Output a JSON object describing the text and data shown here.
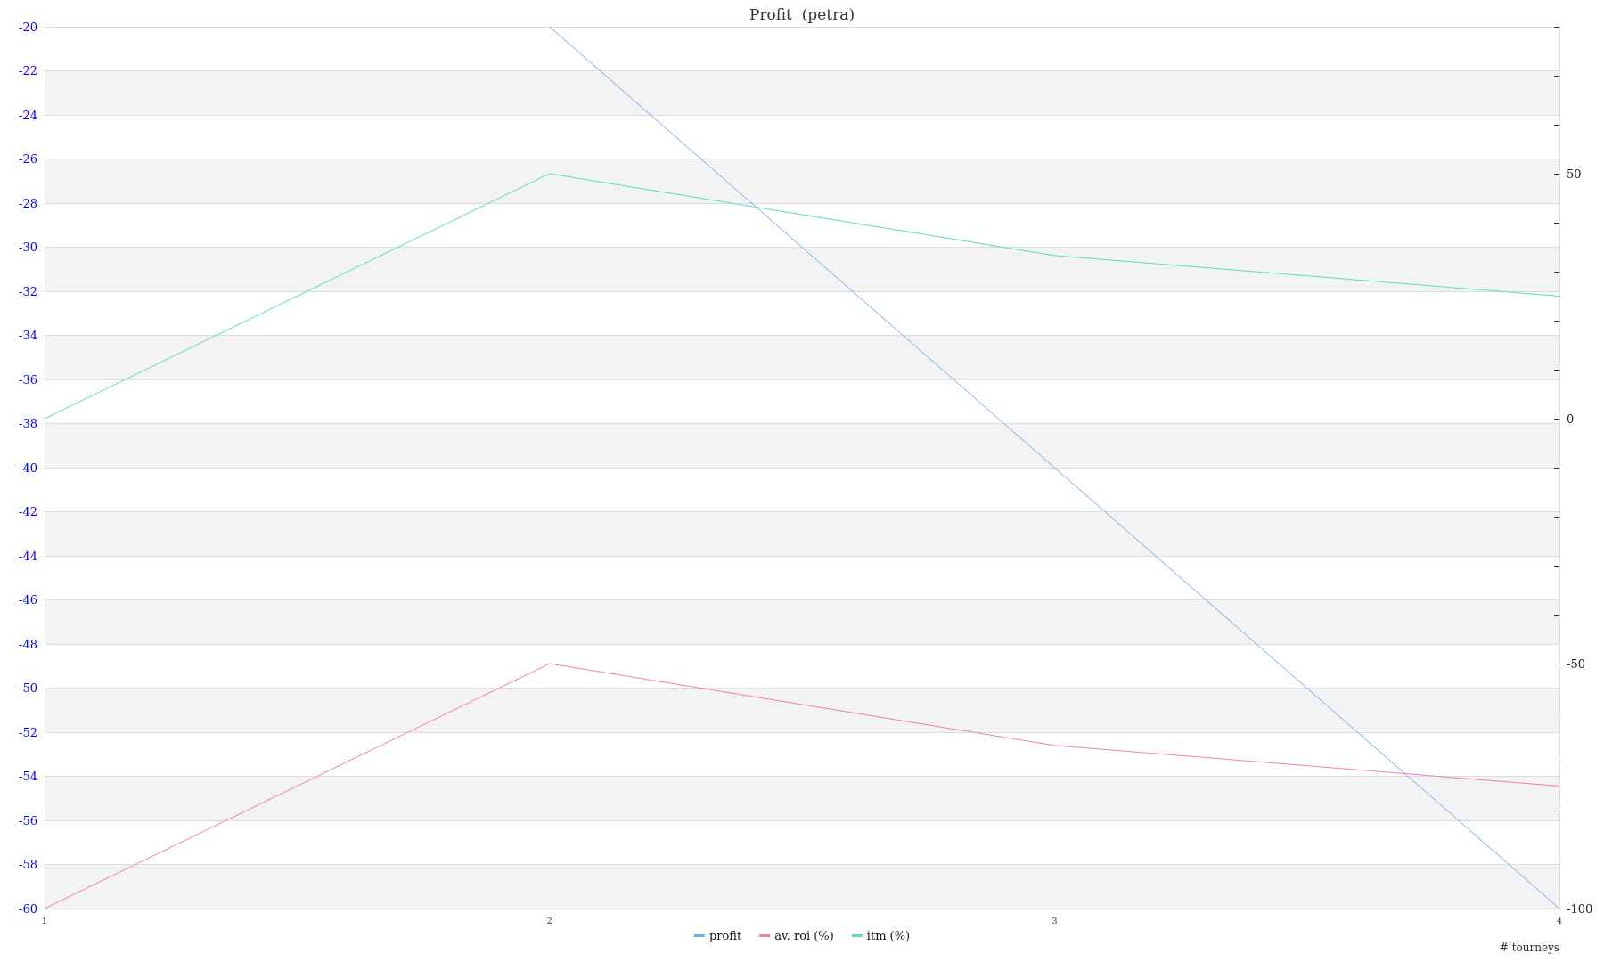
{
  "chart_data": {
    "type": "line",
    "title": "Profit  (petra)",
    "xlabel": "# tourneys",
    "x": [
      1,
      2,
      3,
      4
    ],
    "xlim": [
      1,
      4
    ],
    "xticks": [
      1,
      2,
      3,
      4
    ],
    "ylim": [
      -60,
      -20
    ],
    "yticks": [
      -60,
      -58,
      -56,
      -54,
      -52,
      -50,
      -48,
      -46,
      -44,
      -42,
      -40,
      -38,
      -36,
      -34,
      -32,
      -30,
      -28,
      -26,
      -24,
      -22,
      -20
    ],
    "y2lim": [
      -100,
      80
    ],
    "y2ticks": [
      -100,
      {
        "value": -90,
        "label": null
      },
      {
        "value": -80,
        "label": null
      },
      {
        "value": -70,
        "label": null
      },
      {
        "value": -60,
        "label": null
      },
      -50,
      {
        "value": -40,
        "label": null
      },
      {
        "value": -30,
        "label": null
      },
      {
        "value": -20,
        "label": null
      },
      {
        "value": -10,
        "label": null
      },
      0,
      {
        "value": 10,
        "label": null
      },
      {
        "value": 20,
        "label": null
      },
      {
        "value": 30,
        "label": null
      },
      {
        "value": 40,
        "label": null
      },
      50,
      {
        "value": 60,
        "label": null
      },
      {
        "value": 70,
        "label": null
      },
      {
        "value": 80,
        "label": null
      }
    ],
    "grid": "y",
    "legend": "bottom",
    "marker": "none",
    "line_style": "solid",
    "series": [
      {
        "name": "profit",
        "color": "#6aaff0",
        "values": [
          null,
          -20,
          -40,
          -60
        ]
      },
      {
        "name": "av. roi (%)",
        "color": "#f27eb0",
        "axis": "y2",
        "values": [
          -100,
          -50,
          -66.7,
          -75
        ]
      },
      {
        "name": "itm (%)",
        "color": "#5ae0a8",
        "axis": "y2",
        "values": [
          0,
          50,
          33.3,
          25
        ]
      }
    ]
  }
}
